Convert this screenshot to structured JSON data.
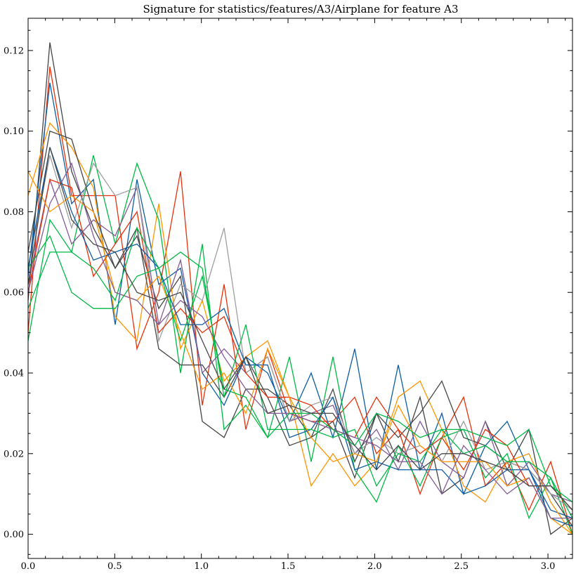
{
  "chart_data": {
    "type": "line",
    "title": "Signature for statistics/features/A3/Airplane for feature A3",
    "xlabel": "",
    "ylabel": "",
    "xlim": [
      0,
      3.1416
    ],
    "ylim": [
      -0.006,
      0.128
    ],
    "xticks": [
      0.0,
      0.5,
      1.0,
      1.5,
      2.0,
      2.5,
      3.0
    ],
    "xtick_labels": [
      "0.0",
      "0.5",
      "1.0",
      "1.5",
      "2.0",
      "2.5",
      "3.0"
    ],
    "yticks": [
      0.0,
      0.02,
      0.04,
      0.06,
      0.08,
      0.1,
      0.12
    ],
    "ytick_labels": [
      "0.00",
      "0.02",
      "0.04",
      "0.06",
      "0.08",
      "0.10",
      "0.12"
    ],
    "grid": false,
    "legend": "none",
    "x": [
      0.0,
      0.1257,
      0.2513,
      0.377,
      0.5027,
      0.6283,
      0.754,
      0.8796,
      1.0053,
      1.131,
      1.2566,
      1.3823,
      1.508,
      1.6336,
      1.7593,
      1.885,
      2.0106,
      2.1363,
      2.2619,
      2.3876,
      2.5133,
      2.6389,
      2.7646,
      2.8903,
      3.0159,
      3.1416
    ],
    "series": [
      {
        "color": "#444444",
        "values": [
          0.058,
          0.122,
          0.09,
          0.076,
          0.066,
          0.074,
          0.056,
          0.064,
          0.028,
          0.024,
          0.036,
          0.036,
          0.032,
          0.024,
          0.028,
          0.014,
          0.03,
          0.018,
          0.034,
          0.01,
          0.014,
          0.028,
          0.016,
          0.026,
          0.0,
          0.004
        ]
      },
      {
        "color": "#e8300a",
        "values": [
          0.05,
          0.116,
          0.084,
          0.084,
          0.084,
          0.046,
          0.06,
          0.09,
          0.032,
          0.062,
          0.026,
          0.046,
          0.03,
          0.028,
          0.028,
          0.034,
          0.02,
          0.026,
          0.01,
          0.024,
          0.034,
          0.012,
          0.018,
          0.006,
          0.018,
          0.0
        ]
      },
      {
        "color": "#0c5da5",
        "values": [
          0.064,
          0.112,
          0.082,
          0.088,
          0.052,
          0.088,
          0.062,
          0.066,
          0.04,
          0.032,
          0.044,
          0.04,
          0.028,
          0.04,
          0.024,
          0.046,
          0.016,
          0.042,
          0.016,
          0.03,
          0.01,
          0.022,
          0.028,
          0.016,
          0.006,
          0.004
        ]
      },
      {
        "color": "#ff9500",
        "values": [
          0.084,
          0.102,
          0.096,
          0.086,
          0.054,
          0.048,
          0.082,
          0.046,
          0.058,
          0.038,
          0.044,
          0.048,
          0.034,
          0.012,
          0.02,
          0.012,
          0.018,
          0.034,
          0.038,
          0.026,
          0.012,
          0.008,
          0.018,
          0.02,
          0.008,
          0.0
        ]
      },
      {
        "color": "#00b945",
        "values": [
          0.048,
          0.078,
          0.07,
          0.094,
          0.072,
          0.092,
          0.078,
          0.04,
          0.072,
          0.026,
          0.032,
          0.024,
          0.044,
          0.018,
          0.044,
          0.016,
          0.008,
          0.022,
          0.012,
          0.024,
          0.026,
          0.014,
          0.02,
          0.004,
          0.014,
          0.0
        ]
      },
      {
        "color": "#845b97",
        "values": [
          0.062,
          0.088,
          0.072,
          0.078,
          0.074,
          0.086,
          0.052,
          0.068,
          0.04,
          0.046,
          0.04,
          0.044,
          0.028,
          0.03,
          0.032,
          0.02,
          0.026,
          0.016,
          0.028,
          0.018,
          0.014,
          0.028,
          0.012,
          0.018,
          0.01,
          0.008
        ]
      },
      {
        "color": "#474747",
        "values": [
          0.07,
          0.1,
          0.098,
          0.08,
          0.066,
          0.076,
          0.046,
          0.042,
          0.042,
          0.034,
          0.044,
          0.034,
          0.022,
          0.024,
          0.036,
          0.018,
          0.03,
          0.024,
          0.03,
          0.038,
          0.024,
          0.022,
          0.018,
          0.016,
          0.01,
          0.002
        ]
      },
      {
        "color": "#9e9e9e",
        "values": [
          0.066,
          0.094,
          0.076,
          0.092,
          0.084,
          0.086,
          0.048,
          0.062,
          0.058,
          0.076,
          0.04,
          0.044,
          0.028,
          0.032,
          0.034,
          0.02,
          0.024,
          0.02,
          0.022,
          0.018,
          0.028,
          0.016,
          0.018,
          0.016,
          0.01,
          0.006
        ]
      },
      {
        "color": "#e8300a",
        "values": [
          0.06,
          0.088,
          0.086,
          0.064,
          0.072,
          0.08,
          0.05,
          0.056,
          0.05,
          0.054,
          0.04,
          0.034,
          0.034,
          0.032,
          0.026,
          0.024,
          0.034,
          0.026,
          0.02,
          0.024,
          0.016,
          0.026,
          0.022,
          0.012,
          0.012,
          0.006
        ]
      },
      {
        "color": "#0c5da5",
        "values": [
          0.066,
          0.096,
          0.08,
          0.068,
          0.07,
          0.072,
          0.066,
          0.052,
          0.052,
          0.056,
          0.042,
          0.042,
          0.024,
          0.026,
          0.034,
          0.016,
          0.018,
          0.016,
          0.016,
          0.016,
          0.01,
          0.012,
          0.016,
          0.016,
          0.004,
          0.002
        ]
      },
      {
        "color": "#00b945",
        "values": [
          0.056,
          0.07,
          0.07,
          0.066,
          0.058,
          0.076,
          0.066,
          0.07,
          0.066,
          0.034,
          0.052,
          0.026,
          0.026,
          0.026,
          0.024,
          0.026,
          0.012,
          0.02,
          0.018,
          0.026,
          0.026,
          0.024,
          0.022,
          0.026,
          0.012,
          0.008
        ]
      },
      {
        "color": "#ff9500",
        "values": [
          0.09,
          0.08,
          0.084,
          0.08,
          0.06,
          0.058,
          0.064,
          0.05,
          0.036,
          0.04,
          0.03,
          0.046,
          0.034,
          0.024,
          0.018,
          0.02,
          0.018,
          0.032,
          0.022,
          0.018,
          0.018,
          0.018,
          0.012,
          0.014,
          0.004,
          0.0
        ]
      },
      {
        "color": "#845b97",
        "values": [
          0.06,
          0.082,
          0.092,
          0.074,
          0.06,
          0.058,
          0.052,
          0.058,
          0.054,
          0.044,
          0.036,
          0.03,
          0.03,
          0.028,
          0.026,
          0.024,
          0.022,
          0.018,
          0.018,
          0.01,
          0.022,
          0.016,
          0.01,
          0.014,
          0.004,
          0.004
        ]
      },
      {
        "color": "#00b945",
        "values": [
          0.066,
          0.074,
          0.06,
          0.056,
          0.056,
          0.064,
          0.066,
          0.048,
          0.064,
          0.036,
          0.034,
          0.024,
          0.03,
          0.03,
          0.026,
          0.022,
          0.03,
          0.028,
          0.024,
          0.026,
          0.02,
          0.022,
          0.018,
          0.018,
          0.014,
          0.004
        ]
      },
      {
        "color": "#474747",
        "values": [
          0.062,
          0.096,
          0.078,
          0.072,
          0.07,
          0.06,
          0.058,
          0.06,
          0.048,
          0.036,
          0.044,
          0.03,
          0.032,
          0.03,
          0.03,
          0.022,
          0.016,
          0.022,
          0.016,
          0.02,
          0.02,
          0.018,
          0.016,
          0.012,
          0.012,
          0.006
        ]
      }
    ]
  }
}
